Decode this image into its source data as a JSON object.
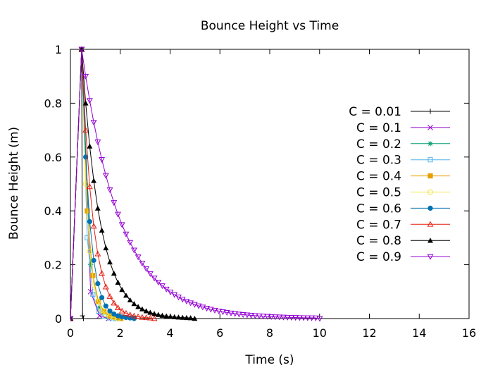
{
  "chart_data": {
    "type": "line",
    "title": "Bounce Height vs Time",
    "xlabel": "Time (s)",
    "ylabel": "Bounce Height (m)",
    "xlim": [
      0,
      16
    ],
    "ylim": [
      0,
      1
    ],
    "x_ticks": [
      0,
      2,
      4,
      6,
      8,
      10,
      12,
      14,
      16
    ],
    "y_ticks": [
      0,
      0.2,
      0.4,
      0.6,
      0.8,
      1
    ],
    "x_tick_labels": [
      "0",
      "2",
      "4",
      "6",
      "8",
      "10",
      "12",
      "14",
      "16"
    ],
    "y_tick_labels": [
      "0",
      "0.2",
      "0.4",
      "0.6",
      "0.8",
      "1"
    ],
    "grid": false,
    "legend_position": "right",
    "model": {
      "rise_start_time": 0,
      "peak_time": 0.45,
      "peak_height": 1,
      "time_step": 0.45,
      "min_height": 0.002
    },
    "series": [
      {
        "name": "C = 0.01",
        "c": 0.01,
        "color": "#000000",
        "marker": "plus"
      },
      {
        "name": "C = 0.1",
        "c": 0.1,
        "color": "#9400d3",
        "marker": "cross"
      },
      {
        "name": "C = 0.2",
        "c": 0.2,
        "color": "#009e73",
        "marker": "star"
      },
      {
        "name": "C = 0.3",
        "c": 0.3,
        "color": "#56b4e9",
        "marker": "square-open"
      },
      {
        "name": "C = 0.4",
        "c": 0.4,
        "color": "#e69f00",
        "marker": "square-filled"
      },
      {
        "name": "C = 0.5",
        "c": 0.5,
        "color": "#f0e442",
        "marker": "circle-open"
      },
      {
        "name": "C = 0.6",
        "c": 0.6,
        "color": "#0072b2",
        "marker": "circle-filled"
      },
      {
        "name": "C = 0.7",
        "c": 0.7,
        "color": "#e51e10",
        "marker": "triangle-open"
      },
      {
        "name": "C = 0.8",
        "c": 0.8,
        "color": "#000000",
        "marker": "triangle-filled"
      },
      {
        "name": "C = 0.9",
        "c": 0.9,
        "color": "#9400d3",
        "marker": "triangle-down-open"
      }
    ]
  }
}
